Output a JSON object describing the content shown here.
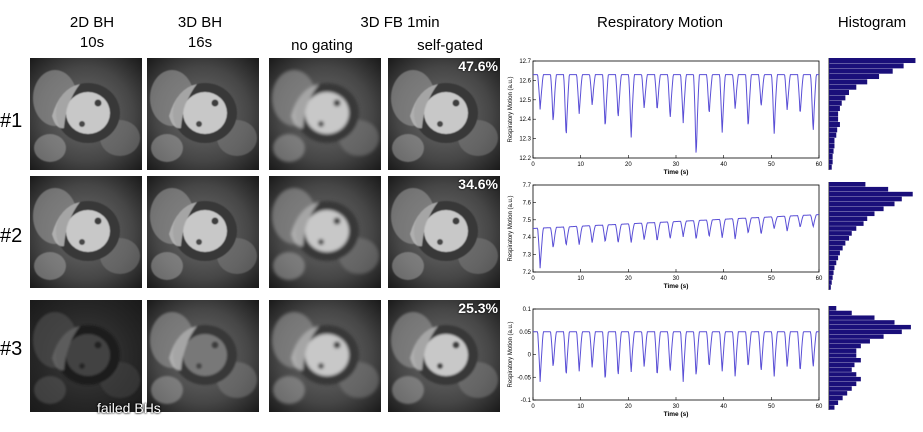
{
  "headers": {
    "col_2dbh_line1": "2D BH",
    "col_2dbh_line2": "10s",
    "col_3dbh_line1": "3D BH",
    "col_3dbh_line2": "16s",
    "col_3dfb": "3D FB 1min",
    "col_no_gating": "no gating",
    "col_self_gated": "self-gated",
    "col_resp": "Respiratory Motion",
    "col_hist": "Histogram"
  },
  "rows": [
    {
      "label": "#1",
      "percent": "47.6%"
    },
    {
      "label": "#2",
      "percent": "34.6%"
    },
    {
      "label": "#3",
      "percent": "25.3%"
    }
  ],
  "failed_label": "failed BHs",
  "colors": {
    "trace": "#5a4fd6",
    "hist": "#1a0f7a"
  },
  "chart_data": [
    {
      "type": "line",
      "ylabel": "Respiratory Motion (a.u.)",
      "xlabel": "Time (s)",
      "xlim": [
        0,
        60
      ],
      "ylim": [
        12.2,
        12.7
      ],
      "xticks": [
        "0",
        "10",
        "20",
        "30",
        "40",
        "50",
        "60"
      ],
      "yticks": [
        "12.2",
        "12.3",
        "12.4",
        "12.5",
        "12.6",
        "12.7"
      ],
      "cycles": 22,
      "baseline": 12.63,
      "drift": 0,
      "troughs": [
        12.45,
        12.38,
        12.3,
        12.42,
        12.47,
        12.35,
        12.4,
        12.3,
        12.45,
        12.44,
        12.4,
        12.38,
        12.2,
        12.42,
        12.32,
        12.45,
        12.35,
        12.46,
        12.32,
        12.44,
        12.42,
        12.33
      ]
    },
    {
      "type": "line",
      "ylabel": "Respiratory Motion (a.u.)",
      "xlabel": "Time (s)",
      "xlim": [
        0,
        60
      ],
      "ylim": [
        7.2,
        7.7
      ],
      "xticks": [
        "0",
        "10",
        "20",
        "30",
        "40",
        "50",
        "60"
      ],
      "yticks": [
        "7.2",
        "7.3",
        "7.4",
        "7.5",
        "7.6",
        "7.7"
      ],
      "cycles": 22,
      "baseline": 7.45,
      "drift": 0.08,
      "troughs": [
        7.22,
        7.33,
        7.34,
        7.34,
        7.35,
        7.35,
        7.34,
        7.34,
        7.35,
        7.34,
        7.35,
        7.36,
        7.34,
        7.35,
        7.34,
        7.33,
        7.36,
        7.35,
        7.38,
        7.36,
        7.38,
        7.38
      ]
    },
    {
      "type": "line",
      "ylabel": "Respiratory Motion (a.u.)",
      "xlabel": "Time (s)",
      "xlim": [
        0,
        60
      ],
      "ylim": [
        -0.1,
        0.1
      ],
      "xticks": [
        "0",
        "10",
        "20",
        "30",
        "40",
        "50",
        "60"
      ],
      "yticks": [
        "-0.1",
        "-0.05",
        "0",
        "0.05",
        "0.1"
      ],
      "cycles": 22,
      "baseline": 0.05,
      "drift": 0,
      "troughs": [
        -0.06,
        -0.03,
        -0.05,
        -0.04,
        -0.03,
        -0.06,
        -0.05,
        -0.04,
        -0.03,
        -0.05,
        -0.04,
        -0.06,
        -0.05,
        -0.03,
        -0.04,
        -0.05,
        -0.03,
        -0.04,
        -0.05,
        -0.03,
        -0.04,
        -0.03
      ]
    },
    {
      "type": "bar",
      "title": "Histogram",
      "orientation": "horizontal",
      "values": [
        0.95,
        0.82,
        0.7,
        0.55,
        0.42,
        0.3,
        0.22,
        0.18,
        0.14,
        0.12,
        0.1,
        0.1,
        0.12,
        0.09,
        0.08,
        0.06,
        0.06,
        0.05,
        0.04,
        0.04,
        0.03
      ]
    },
    {
      "type": "bar",
      "title": "Histogram",
      "orientation": "horizontal",
      "values": [
        0.4,
        0.65,
        0.92,
        0.8,
        0.72,
        0.6,
        0.5,
        0.42,
        0.38,
        0.3,
        0.25,
        0.22,
        0.18,
        0.15,
        0.12,
        0.1,
        0.08,
        0.06,
        0.05,
        0.04,
        0.03,
        0.02
      ]
    },
    {
      "type": "bar",
      "title": "Histogram",
      "orientation": "horizontal",
      "values": [
        0.08,
        0.25,
        0.5,
        0.72,
        0.9,
        0.8,
        0.6,
        0.45,
        0.35,
        0.3,
        0.3,
        0.35,
        0.28,
        0.25,
        0.3,
        0.35,
        0.3,
        0.25,
        0.2,
        0.15,
        0.1,
        0.06
      ]
    }
  ]
}
